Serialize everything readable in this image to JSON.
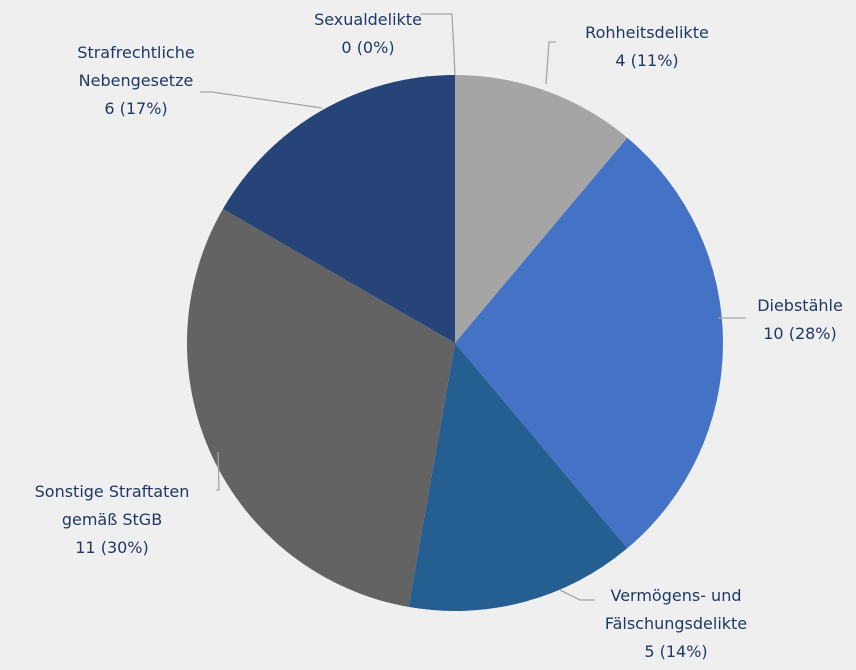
{
  "chart_data": {
    "type": "pie",
    "categories": [
      "Sexualdelikte",
      "Rohheitsdelikte",
      "Diebstähle",
      "Vermögens- und\nFälschungsdelikte",
      "Sonstige Straftaten\ngemäß StGB",
      "Strafrechtliche\nNebengesetze"
    ],
    "values": [
      0,
      4,
      10,
      5,
      11,
      6
    ],
    "value_labels": [
      "0 (0%)",
      "4 (11%)",
      "10 (28%)",
      "5 (14%)",
      "11 (30%)",
      "6 (17%)"
    ],
    "colors": [
      "#2e5597",
      "#a5a5a5",
      "#4472c4",
      "#255e91",
      "#636363",
      "#264478"
    ]
  }
}
